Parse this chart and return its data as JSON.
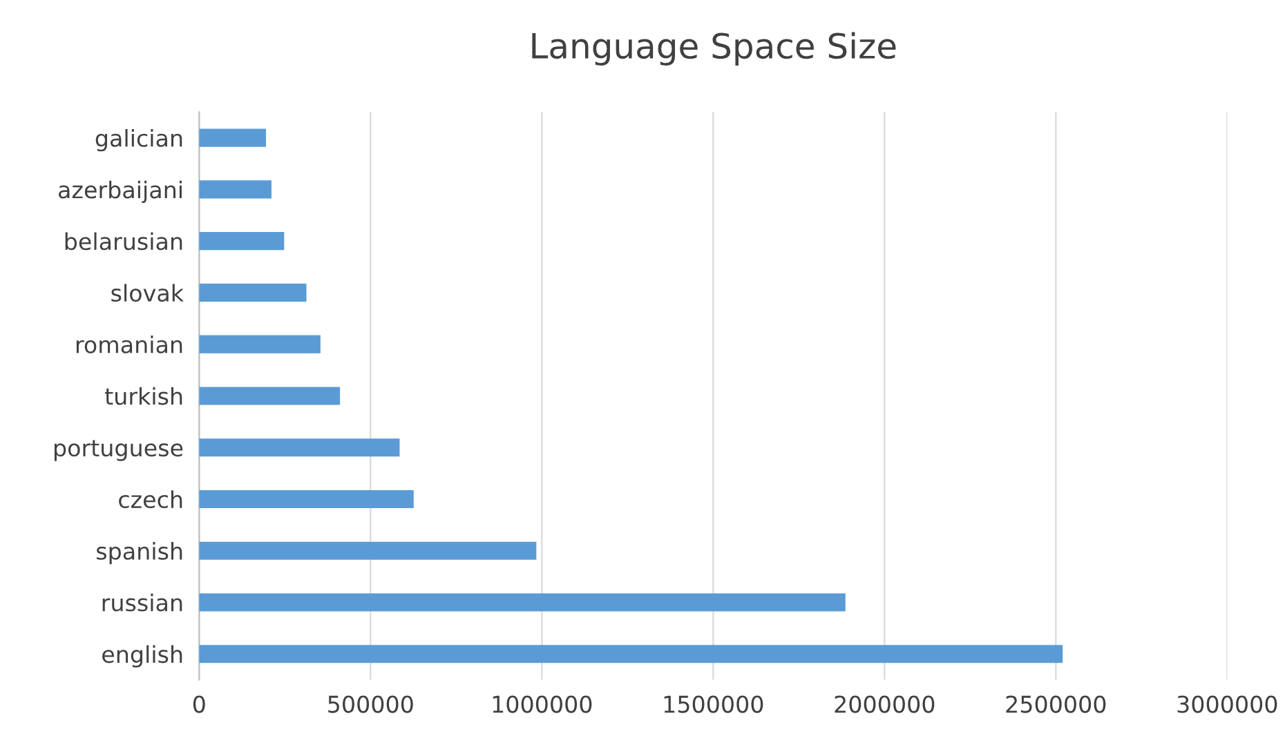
{
  "chart_data": {
    "type": "bar",
    "orientation": "horizontal",
    "title": "Language Space Size",
    "categories": [
      "galician",
      "azerbaijani",
      "belarusian",
      "slovak",
      "romanian",
      "turkish",
      "portuguese",
      "czech",
      "spanish",
      "russian",
      "english"
    ],
    "values": [
      195000,
      211000,
      248000,
      313000,
      354000,
      411000,
      585000,
      626000,
      984000,
      1886000,
      2520000
    ],
    "color": "#5b9bd5",
    "xlim": [
      0,
      3000000
    ],
    "xticks": [
      0,
      500000,
      1000000,
      1500000,
      2000000,
      2500000,
      3000000
    ],
    "grid": "x"
  }
}
